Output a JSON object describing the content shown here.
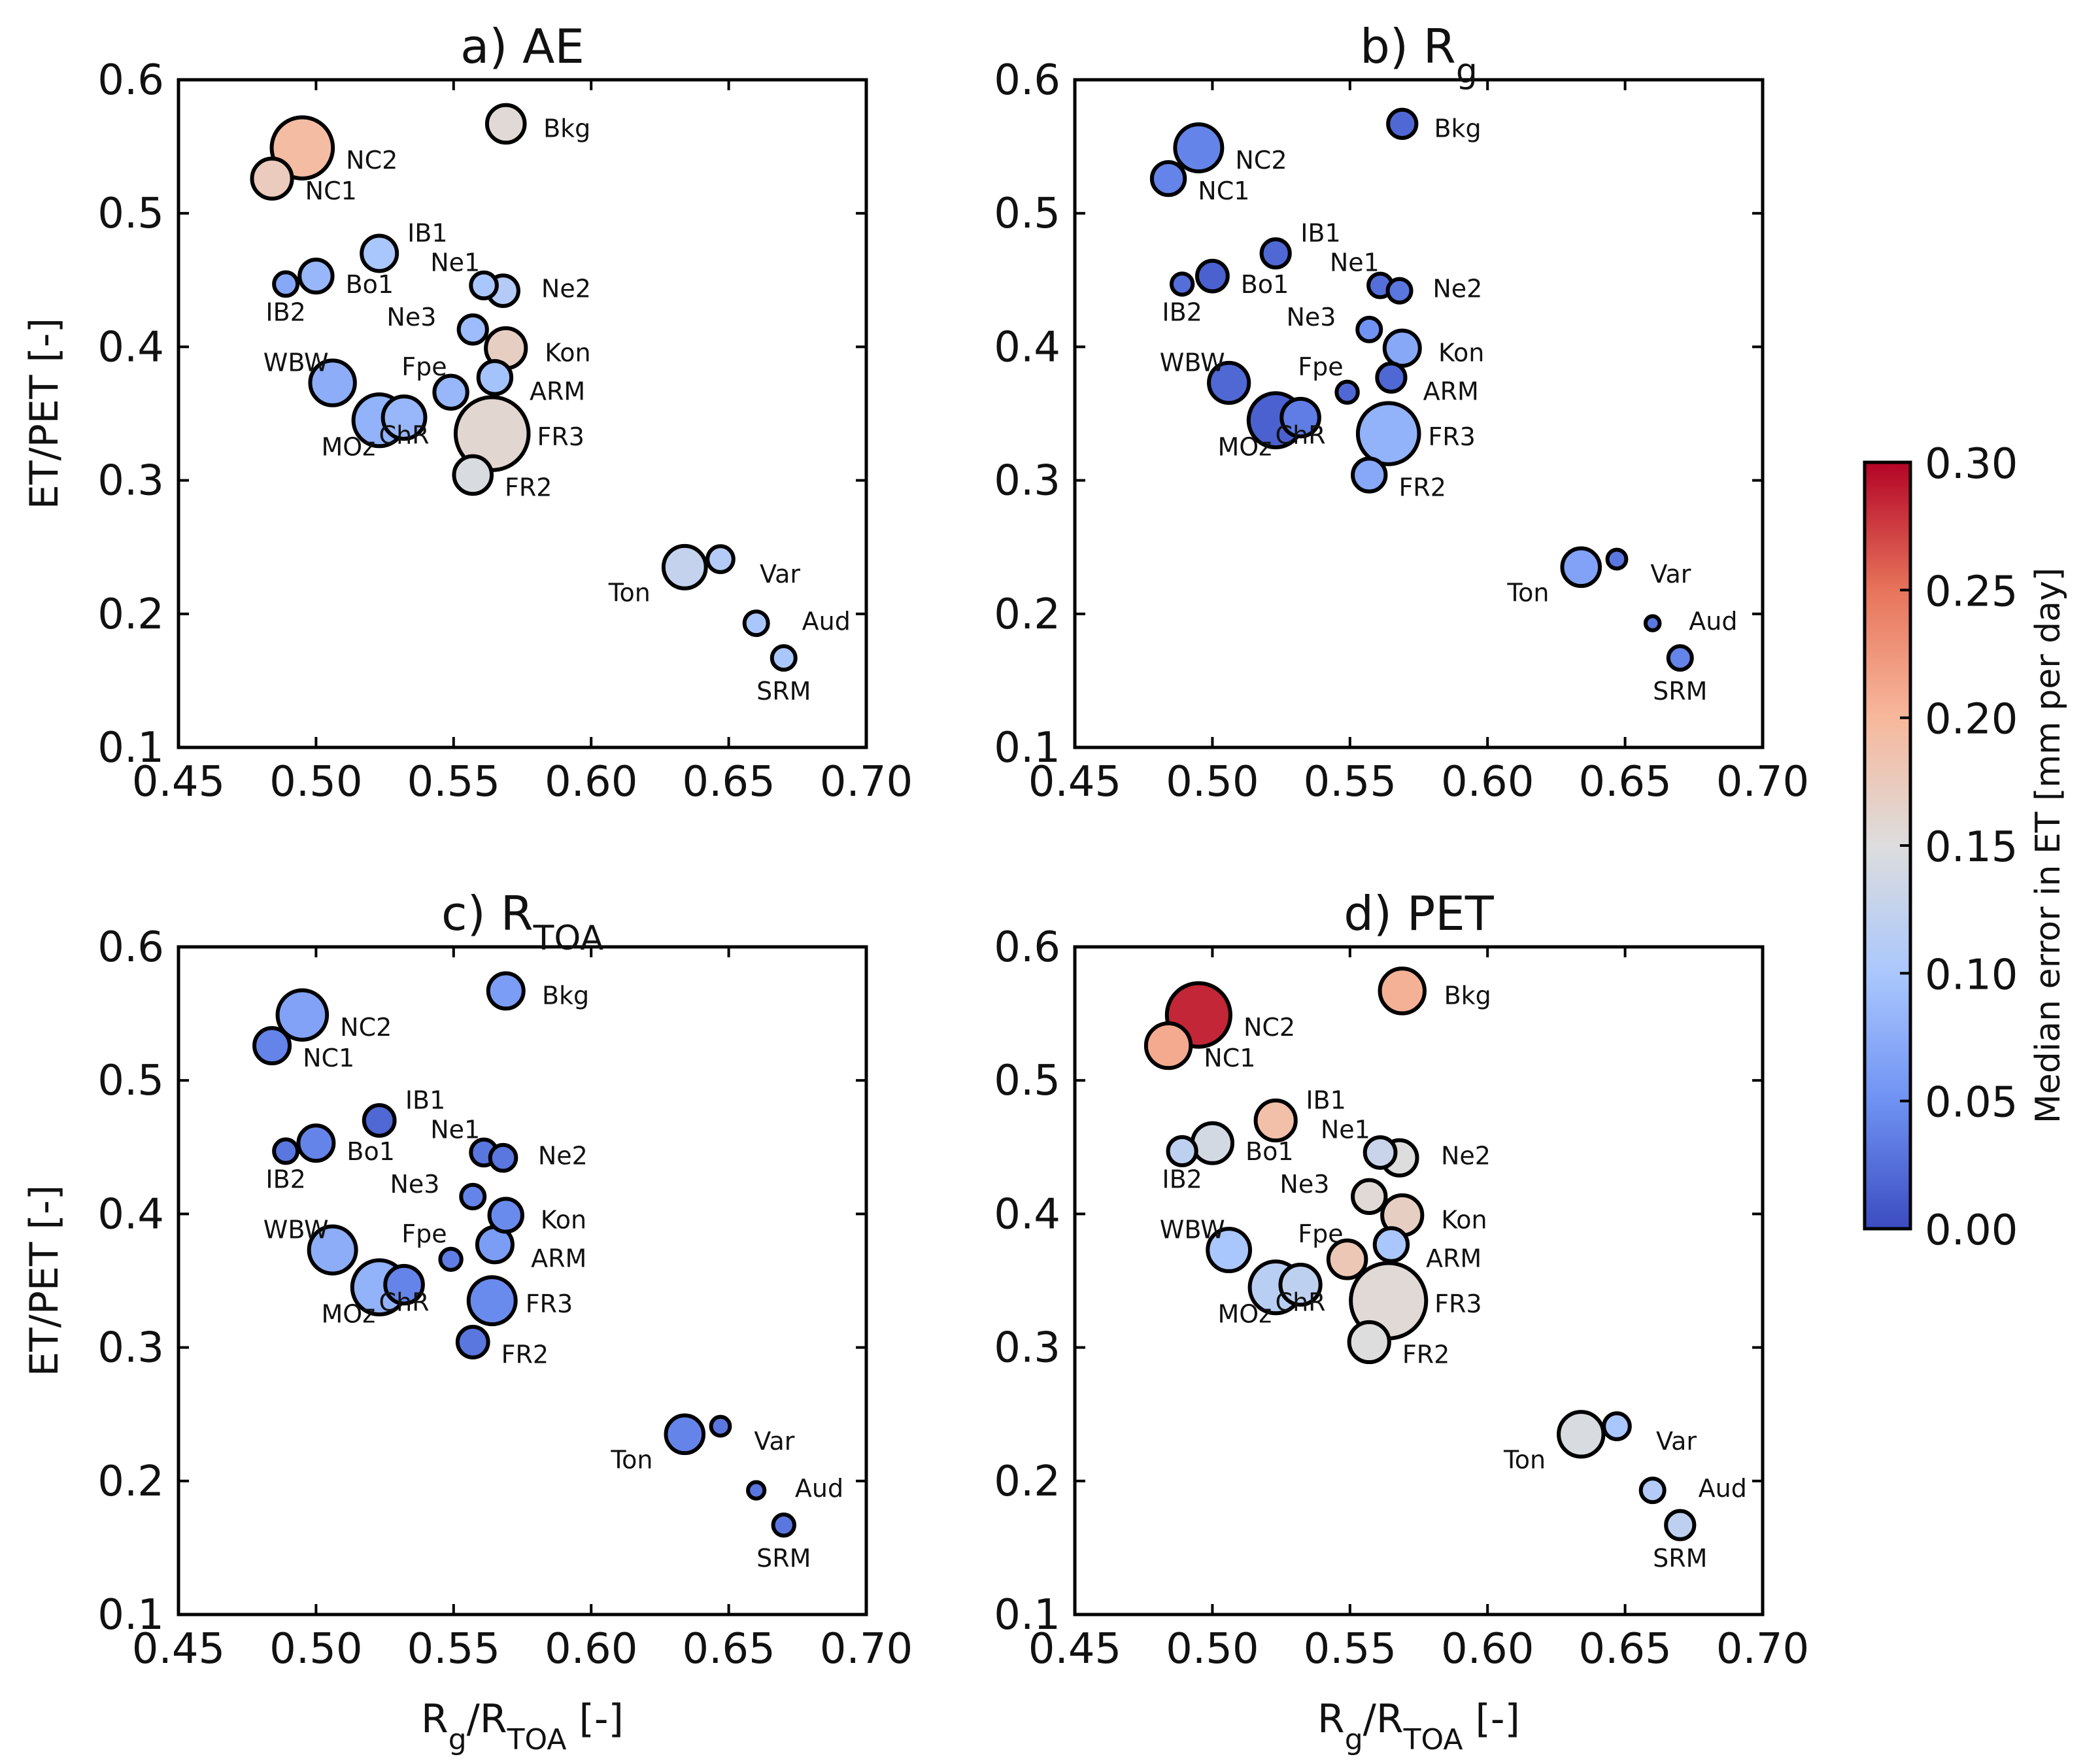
{
  "chart_data": [
    {
      "type": "scatter",
      "title": "a) AE",
      "title_main": "a) AE",
      "title_sub": "",
      "xlabel": "Rg/RTOA [-]",
      "ylabel": "ET/PET [-]",
      "xlim": [
        0.45,
        0.7
      ],
      "ylim": [
        0.1,
        0.6
      ],
      "xticks": [
        "0.45",
        "0.50",
        "0.55",
        "0.60",
        "0.65",
        "0.70"
      ],
      "yticks": [
        "0.1",
        "0.2",
        "0.3",
        "0.4",
        "0.5",
        "0.6"
      ],
      "points": [
        {
          "label": "NC2",
          "x": 0.495,
          "y": 0.549,
          "size": 5.2,
          "error": 0.195
        },
        {
          "label": "NC1",
          "x": 0.484,
          "y": 0.526,
          "size": 3.4,
          "error": 0.175
        },
        {
          "label": "Bkg",
          "x": 0.569,
          "y": 0.567,
          "size": 3.2,
          "error": 0.155
        },
        {
          "label": "IB1",
          "x": 0.523,
          "y": 0.47,
          "size": 3.0,
          "error": 0.1
        },
        {
          "label": "Ne1",
          "x": 0.561,
          "y": 0.446,
          "size": 2.2,
          "error": 0.1
        },
        {
          "label": "Ne2",
          "x": 0.568,
          "y": 0.442,
          "size": 2.6,
          "error": 0.11
        },
        {
          "label": "Bo1",
          "x": 0.5,
          "y": 0.453,
          "size": 2.8,
          "error": 0.085
        },
        {
          "label": "IB2",
          "x": 0.489,
          "y": 0.447,
          "size": 2.0,
          "error": 0.07
        },
        {
          "label": "Ne3",
          "x": 0.557,
          "y": 0.413,
          "size": 2.4,
          "error": 0.09
        },
        {
          "label": "Kon",
          "x": 0.569,
          "y": 0.399,
          "size": 3.4,
          "error": 0.17
        },
        {
          "label": "Fpe",
          "x": 0.549,
          "y": 0.366,
          "size": 2.8,
          "error": 0.085
        },
        {
          "label": "ARM",
          "x": 0.565,
          "y": 0.377,
          "size": 2.8,
          "error": 0.095
        },
        {
          "label": "WBW",
          "x": 0.506,
          "y": 0.373,
          "size": 3.8,
          "error": 0.075
        },
        {
          "label": "MOz",
          "x": 0.523,
          "y": 0.345,
          "size": 4.4,
          "error": 0.08
        },
        {
          "label": "ChR",
          "x": 0.532,
          "y": 0.347,
          "size": 3.6,
          "error": 0.085
        },
        {
          "label": "FR3",
          "x": 0.564,
          "y": 0.335,
          "size": 6.2,
          "error": 0.16
        },
        {
          "label": "FR2",
          "x": 0.557,
          "y": 0.304,
          "size": 3.2,
          "error": 0.145
        },
        {
          "label": "Ton",
          "x": 0.634,
          "y": 0.235,
          "size": 3.6,
          "error": 0.125
        },
        {
          "label": "Var",
          "x": 0.647,
          "y": 0.241,
          "size": 2.2,
          "error": 0.11
        },
        {
          "label": "Aud",
          "x": 0.66,
          "y": 0.193,
          "size": 2.0,
          "error": 0.1
        },
        {
          "label": "SRM",
          "x": 0.67,
          "y": 0.167,
          "size": 2.0,
          "error": 0.1
        }
      ]
    },
    {
      "type": "scatter",
      "title": "b) Rg",
      "title_main": "b) R",
      "title_sub": "g",
      "xlabel": "Rg/RTOA [-]",
      "ylabel": "ET/PET [-]",
      "xlim": [
        0.45,
        0.7
      ],
      "ylim": [
        0.1,
        0.6
      ],
      "xticks": [
        "0.45",
        "0.50",
        "0.55",
        "0.60",
        "0.65",
        "0.70"
      ],
      "yticks": [
        "0.1",
        "0.2",
        "0.3",
        "0.4",
        "0.5",
        "0.6"
      ],
      "points": [
        {
          "label": "NC2",
          "x": 0.495,
          "y": 0.549,
          "size": 4.0,
          "error": 0.04
        },
        {
          "label": "NC1",
          "x": 0.484,
          "y": 0.526,
          "size": 2.8,
          "error": 0.04
        },
        {
          "label": "Bkg",
          "x": 0.569,
          "y": 0.567,
          "size": 2.4,
          "error": 0.02
        },
        {
          "label": "IB1",
          "x": 0.523,
          "y": 0.47,
          "size": 2.4,
          "error": 0.02
        },
        {
          "label": "Ne1",
          "x": 0.561,
          "y": 0.446,
          "size": 2.0,
          "error": 0.025
        },
        {
          "label": "Ne2",
          "x": 0.568,
          "y": 0.442,
          "size": 2.0,
          "error": 0.03
        },
        {
          "label": "Bo1",
          "x": 0.5,
          "y": 0.453,
          "size": 2.6,
          "error": 0.015
        },
        {
          "label": "IB2",
          "x": 0.489,
          "y": 0.447,
          "size": 1.8,
          "error": 0.025
        },
        {
          "label": "Ne3",
          "x": 0.557,
          "y": 0.413,
          "size": 2.0,
          "error": 0.05
        },
        {
          "label": "Kon",
          "x": 0.569,
          "y": 0.399,
          "size": 3.0,
          "error": 0.07
        },
        {
          "label": "Fpe",
          "x": 0.549,
          "y": 0.366,
          "size": 1.8,
          "error": 0.02
        },
        {
          "label": "ARM",
          "x": 0.565,
          "y": 0.377,
          "size": 2.4,
          "error": 0.02
        },
        {
          "label": "WBW",
          "x": 0.506,
          "y": 0.373,
          "size": 3.4,
          "error": 0.02
        },
        {
          "label": "MOz",
          "x": 0.523,
          "y": 0.345,
          "size": 4.6,
          "error": 0.015
        },
        {
          "label": "ChR",
          "x": 0.532,
          "y": 0.347,
          "size": 3.2,
          "error": 0.035
        },
        {
          "label": "FR3",
          "x": 0.564,
          "y": 0.335,
          "size": 5.2,
          "error": 0.08
        },
        {
          "label": "FR2",
          "x": 0.557,
          "y": 0.304,
          "size": 2.8,
          "error": 0.07
        },
        {
          "label": "Ton",
          "x": 0.634,
          "y": 0.235,
          "size": 3.2,
          "error": 0.065
        },
        {
          "label": "Var",
          "x": 0.647,
          "y": 0.241,
          "size": 1.6,
          "error": 0.03
        },
        {
          "label": "Aud",
          "x": 0.66,
          "y": 0.193,
          "size": 1.2,
          "error": 0.03
        },
        {
          "label": "SRM",
          "x": 0.67,
          "y": 0.167,
          "size": 2.0,
          "error": 0.04
        }
      ]
    },
    {
      "type": "scatter",
      "title": "c) RTOA",
      "title_main": "c) R",
      "title_sub": "TOA",
      "xlabel": "Rg/RTOA [-]",
      "ylabel": "ET/PET [-]",
      "xlim": [
        0.45,
        0.7
      ],
      "ylim": [
        0.1,
        0.6
      ],
      "xticks": [
        "0.45",
        "0.50",
        "0.55",
        "0.60",
        "0.65",
        "0.70"
      ],
      "yticks": [
        "0.1",
        "0.2",
        "0.3",
        "0.4",
        "0.5",
        "0.6"
      ],
      "points": [
        {
          "label": "NC2",
          "x": 0.495,
          "y": 0.549,
          "size": 4.2,
          "error": 0.065
        },
        {
          "label": "NC1",
          "x": 0.484,
          "y": 0.526,
          "size": 3.0,
          "error": 0.04
        },
        {
          "label": "Bkg",
          "x": 0.569,
          "y": 0.567,
          "size": 3.0,
          "error": 0.06
        },
        {
          "label": "IB1",
          "x": 0.523,
          "y": 0.47,
          "size": 2.6,
          "error": 0.02
        },
        {
          "label": "Ne1",
          "x": 0.561,
          "y": 0.446,
          "size": 2.2,
          "error": 0.03
        },
        {
          "label": "Ne2",
          "x": 0.568,
          "y": 0.442,
          "size": 2.2,
          "error": 0.03
        },
        {
          "label": "Bo1",
          "x": 0.5,
          "y": 0.453,
          "size": 3.0,
          "error": 0.04
        },
        {
          "label": "IB2",
          "x": 0.489,
          "y": 0.447,
          "size": 2.0,
          "error": 0.03
        },
        {
          "label": "Ne3",
          "x": 0.557,
          "y": 0.413,
          "size": 2.0,
          "error": 0.04
        },
        {
          "label": "Kon",
          "x": 0.569,
          "y": 0.399,
          "size": 2.8,
          "error": 0.045
        },
        {
          "label": "Fpe",
          "x": 0.549,
          "y": 0.366,
          "size": 1.8,
          "error": 0.035
        },
        {
          "label": "ARM",
          "x": 0.565,
          "y": 0.377,
          "size": 3.0,
          "error": 0.06
        },
        {
          "label": "WBW",
          "x": 0.506,
          "y": 0.373,
          "size": 4.0,
          "error": 0.075
        },
        {
          "label": "MOz",
          "x": 0.523,
          "y": 0.345,
          "size": 4.6,
          "error": 0.08
        },
        {
          "label": "ChR",
          "x": 0.532,
          "y": 0.347,
          "size": 3.2,
          "error": 0.04
        },
        {
          "label": "FR3",
          "x": 0.564,
          "y": 0.335,
          "size": 4.0,
          "error": 0.045
        },
        {
          "label": "FR2",
          "x": 0.557,
          "y": 0.304,
          "size": 2.6,
          "error": 0.03
        },
        {
          "label": "Ton",
          "x": 0.634,
          "y": 0.235,
          "size": 3.2,
          "error": 0.04
        },
        {
          "label": "Var",
          "x": 0.647,
          "y": 0.241,
          "size": 1.6,
          "error": 0.03
        },
        {
          "label": "Aud",
          "x": 0.66,
          "y": 0.193,
          "size": 1.4,
          "error": 0.03
        },
        {
          "label": "SRM",
          "x": 0.67,
          "y": 0.167,
          "size": 1.8,
          "error": 0.03
        }
      ]
    },
    {
      "type": "scatter",
      "title": "d) PET",
      "title_main": "d) PET",
      "title_sub": "",
      "xlabel": "Rg/RTOA [-]",
      "ylabel": "ET/PET [-]",
      "xlim": [
        0.45,
        0.7
      ],
      "ylim": [
        0.1,
        0.6
      ],
      "xticks": [
        "0.45",
        "0.50",
        "0.55",
        "0.60",
        "0.65",
        "0.70"
      ],
      "yticks": [
        "0.1",
        "0.2",
        "0.3",
        "0.4",
        "0.5",
        "0.6"
      ],
      "points": [
        {
          "label": "NC2",
          "x": 0.495,
          "y": 0.549,
          "size": 5.4,
          "error": 0.285
        },
        {
          "label": "NC1",
          "x": 0.484,
          "y": 0.526,
          "size": 3.8,
          "error": 0.21
        },
        {
          "label": "Bkg",
          "x": 0.569,
          "y": 0.567,
          "size": 3.8,
          "error": 0.205
        },
        {
          "label": "IB1",
          "x": 0.523,
          "y": 0.47,
          "size": 3.4,
          "error": 0.19
        },
        {
          "label": "Ne1",
          "x": 0.561,
          "y": 0.446,
          "size": 2.6,
          "error": 0.13
        },
        {
          "label": "Ne2",
          "x": 0.568,
          "y": 0.442,
          "size": 3.0,
          "error": 0.15
        },
        {
          "label": "Bo1",
          "x": 0.5,
          "y": 0.453,
          "size": 3.4,
          "error": 0.14
        },
        {
          "label": "IB2",
          "x": 0.489,
          "y": 0.447,
          "size": 2.4,
          "error": 0.12
        },
        {
          "label": "Ne3",
          "x": 0.557,
          "y": 0.413,
          "size": 2.8,
          "error": 0.155
        },
        {
          "label": "Kon",
          "x": 0.569,
          "y": 0.399,
          "size": 3.4,
          "error": 0.17
        },
        {
          "label": "Fpe",
          "x": 0.549,
          "y": 0.366,
          "size": 3.2,
          "error": 0.18
        },
        {
          "label": "ARM",
          "x": 0.565,
          "y": 0.377,
          "size": 2.8,
          "error": 0.1
        },
        {
          "label": "WBW",
          "x": 0.506,
          "y": 0.373,
          "size": 3.6,
          "error": 0.1
        },
        {
          "label": "MOz",
          "x": 0.523,
          "y": 0.345,
          "size": 4.4,
          "error": 0.115
        },
        {
          "label": "ChR",
          "x": 0.532,
          "y": 0.347,
          "size": 3.4,
          "error": 0.12
        },
        {
          "label": "FR3",
          "x": 0.564,
          "y": 0.335,
          "size": 6.4,
          "error": 0.155
        },
        {
          "label": "FR2",
          "x": 0.557,
          "y": 0.304,
          "size": 3.4,
          "error": 0.15
        },
        {
          "label": "Ton",
          "x": 0.634,
          "y": 0.235,
          "size": 3.8,
          "error": 0.145
        },
        {
          "label": "Var",
          "x": 0.647,
          "y": 0.241,
          "size": 2.2,
          "error": 0.1
        },
        {
          "label": "Aud",
          "x": 0.66,
          "y": 0.193,
          "size": 2.0,
          "error": 0.11
        },
        {
          "label": "SRM",
          "x": 0.67,
          "y": 0.167,
          "size": 2.4,
          "error": 0.12
        }
      ]
    }
  ],
  "axis_labels": {
    "x_main": "R",
    "x_sub1": "g",
    "x_mid": "/R",
    "x_sub2": "TOA",
    "x_tail": " [-]",
    "y": "ET/PET [-]"
  },
  "colorbar": {
    "label": "Median error in ET [mm per day]",
    "min": 0.0,
    "max": 0.3,
    "ticks": [
      "0.00",
      "0.05",
      "0.10",
      "0.15",
      "0.20",
      "0.25",
      "0.30"
    ],
    "colors": [
      "#3b4cc0",
      "#6f92f3",
      "#aac7fd",
      "#dddddd",
      "#f7b89c",
      "#e7745b",
      "#b40426"
    ]
  }
}
